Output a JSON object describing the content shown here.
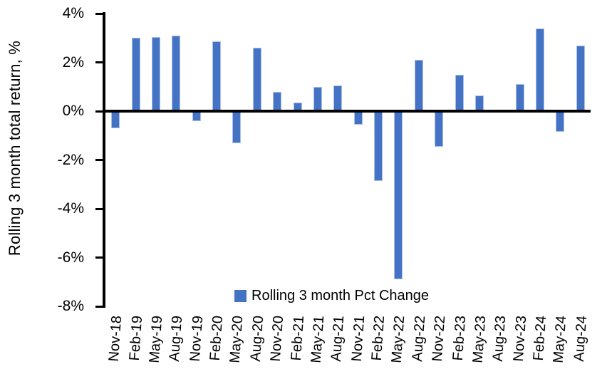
{
  "chart_data": {
    "type": "bar",
    "ylabel": "Rolling 3 month total return, %",
    "xlabel": "",
    "legend": [
      "Rolling 3 month Pct Change"
    ],
    "legend_position": "bottom-inside",
    "grid": false,
    "ylim": [
      -8,
      4
    ],
    "yticks": [
      4,
      2,
      0,
      -2,
      -4,
      -6,
      -8
    ],
    "ytick_labels": [
      "4%",
      "2%",
      "0%",
      "-2%",
      "-4%",
      "-6%",
      "-8%"
    ],
    "bar_color": "#4472C4",
    "bar_edge_color": "#A9BFE8",
    "axis_color": "#000000",
    "categories": [
      "Nov-18",
      "Feb-19",
      "May-19",
      "Aug-19",
      "Nov-19",
      "Feb-20",
      "May-20",
      "Aug-20",
      "Nov-20",
      "Feb-21",
      "May-21",
      "Aug-21",
      "Nov-21",
      "Feb-22",
      "May-22",
      "Aug-22",
      "Nov-22",
      "Feb-23",
      "May-23",
      "Aug-23",
      "Nov-23",
      "Feb-24",
      "May-24",
      "Aug-24"
    ],
    "series": [
      {
        "name": "Rolling 3 month Pct Change",
        "values": [
          -0.7,
          3.0,
          3.05,
          3.1,
          -0.4,
          2.85,
          -1.3,
          2.6,
          0.8,
          0.35,
          1.0,
          1.05,
          -0.55,
          -2.85,
          -6.9,
          2.1,
          -1.45,
          1.5,
          0.65,
          0.0,
          1.1,
          3.4,
          -0.85,
          2.7
        ]
      }
    ]
  }
}
